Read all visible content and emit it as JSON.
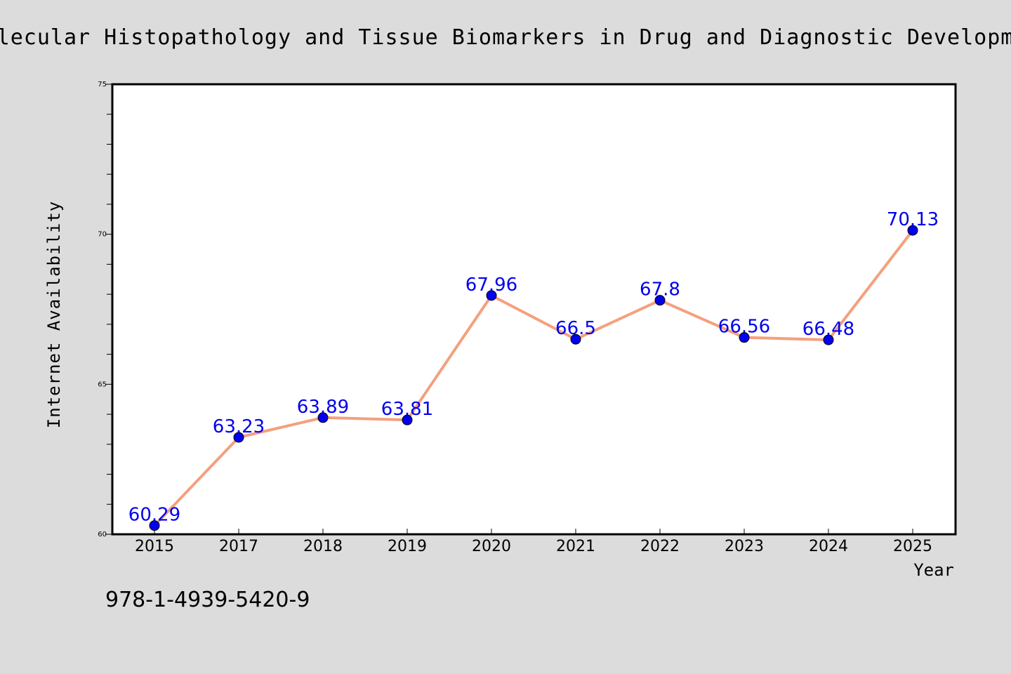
{
  "chart_data": {
    "type": "line",
    "title": "Molecular Histopathology and Tissue Biomarkers in Drug and Diagnostic Developmen",
    "xlabel": "Year",
    "ylabel": "Internet Availability",
    "categories": [
      "2015",
      "2017",
      "2018",
      "2019",
      "2020",
      "2021",
      "2022",
      "2023",
      "2024",
      "2025"
    ],
    "series": [
      {
        "values": [
          60.29,
          63.23,
          63.89,
          63.81,
          67.96,
          66.5,
          67.8,
          66.56,
          66.48,
          70.13
        ],
        "labels": [
          "60.29",
          "63.23",
          "63.89",
          "63.81",
          "67.96",
          "66.5",
          "67.8",
          "66.56",
          "66.48",
          "70.13"
        ]
      }
    ],
    "ylim": [
      60,
      75
    ],
    "yticks": [
      "60",
      "65",
      "70",
      "75"
    ],
    "grid": false,
    "legend": "none",
    "colors": {
      "line": "#f4a07e",
      "marker": "#0000ee",
      "label": "#0000ee",
      "background": "#dcdcdc",
      "plot_background": "#ffffff"
    }
  },
  "footer_text": "978-1-4939-5420-9"
}
